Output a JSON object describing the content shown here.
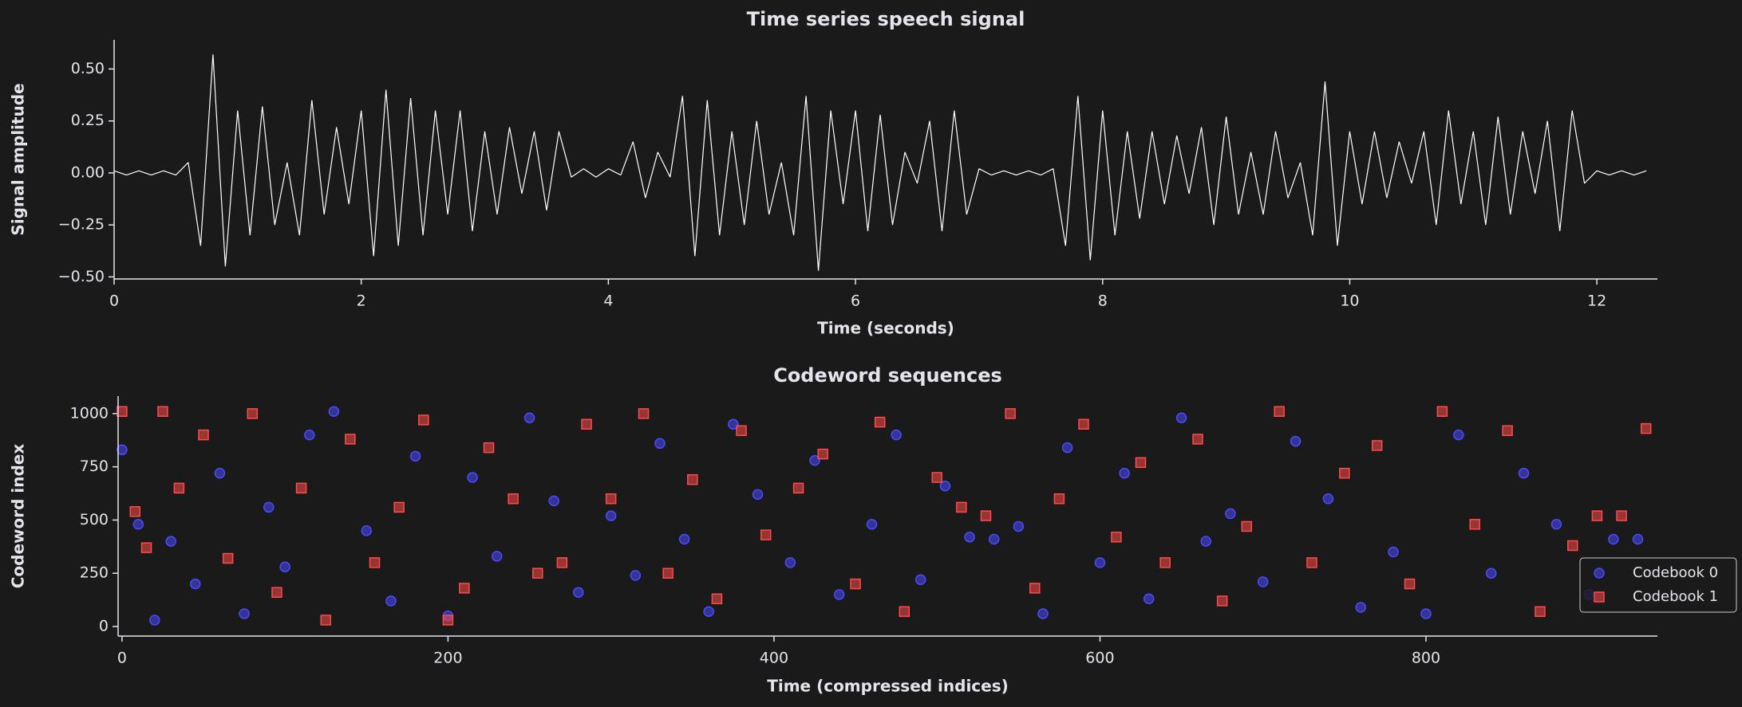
{
  "chart_data": [
    {
      "type": "line",
      "title": "Time series speech signal",
      "xlabel": "Time (seconds)",
      "ylabel": "Signal amplitude",
      "xlim": [
        0,
        12.49
      ],
      "ylim": [
        -0.51,
        0.64
      ],
      "xticks": [
        0,
        2,
        4,
        6,
        8,
        10,
        12
      ],
      "yticks": [
        {
          "value": -0.5,
          "label": "−0.50"
        },
        {
          "value": -0.25,
          "label": "−0.25"
        },
        {
          "value": 0,
          "label": "0.00"
        },
        {
          "value": 0.25,
          "label": "0.25"
        },
        {
          "value": 0.5,
          "label": "0.50"
        }
      ],
      "series": [
        {
          "color": "#ffffff",
          "x": [
            0,
            0.1,
            0.2,
            0.3,
            0.4,
            0.5,
            0.6,
            0.7,
            0.8,
            0.9,
            1.0,
            1.1,
            1.2,
            1.3,
            1.4,
            1.5,
            1.6,
            1.7,
            1.8,
            1.9,
            2.0,
            2.1,
            2.2,
            2.3,
            2.4,
            2.5,
            2.6,
            2.7,
            2.8,
            2.9,
            3.0,
            3.1,
            3.2,
            3.3,
            3.4,
            3.5,
            3.6,
            3.7,
            3.8,
            3.9,
            4.0,
            4.1,
            4.2,
            4.3,
            4.4,
            4.5,
            4.6,
            4.7,
            4.8,
            4.9,
            5.0,
            5.1,
            5.2,
            5.3,
            5.4,
            5.5,
            5.6,
            5.7,
            5.8,
            5.9,
            6.0,
            6.1,
            6.2,
            6.3,
            6.4,
            6.5,
            6.6,
            6.7,
            6.8,
            6.9,
            7.0,
            7.1,
            7.2,
            7.3,
            7.4,
            7.5,
            7.6,
            7.7,
            7.8,
            7.9,
            8.0,
            8.1,
            8.2,
            8.3,
            8.4,
            8.5,
            8.6,
            8.7,
            8.8,
            8.9,
            9.0,
            9.1,
            9.2,
            9.3,
            9.4,
            9.5,
            9.6,
            9.7,
            9.8,
            9.9,
            10.0,
            10.1,
            10.2,
            10.3,
            10.4,
            10.5,
            10.6,
            10.7,
            10.8,
            10.9,
            11.0,
            11.1,
            11.2,
            11.3,
            11.4,
            11.5,
            11.6,
            11.7,
            11.8,
            11.9,
            12.0,
            12.1,
            12.2,
            12.3,
            12.4
          ],
          "values": [
            0.01,
            -0.01,
            0.01,
            -0.01,
            0.01,
            -0.01,
            0.05,
            -0.35,
            0.57,
            -0.45,
            0.3,
            -0.3,
            0.32,
            -0.25,
            0.05,
            -0.3,
            0.35,
            -0.2,
            0.22,
            -0.15,
            0.3,
            -0.4,
            0.4,
            -0.35,
            0.36,
            -0.3,
            0.3,
            -0.2,
            0.3,
            -0.28,
            0.2,
            -0.2,
            0.22,
            -0.1,
            0.2,
            -0.18,
            0.2,
            -0.02,
            0.02,
            -0.02,
            0.02,
            -0.01,
            0.15,
            -0.12,
            0.1,
            -0.02,
            0.37,
            -0.4,
            0.35,
            -0.3,
            0.2,
            -0.25,
            0.25,
            -0.2,
            0.05,
            -0.3,
            0.37,
            -0.47,
            0.3,
            -0.15,
            0.3,
            -0.28,
            0.28,
            -0.25,
            0.1,
            -0.05,
            0.25,
            -0.28,
            0.3,
            -0.2,
            0.02,
            -0.01,
            0.01,
            -0.01,
            0.01,
            -0.01,
            0.02,
            -0.35,
            0.37,
            -0.42,
            0.3,
            -0.3,
            0.2,
            -0.22,
            0.2,
            -0.15,
            0.18,
            -0.1,
            0.22,
            -0.25,
            0.27,
            -0.2,
            0.1,
            -0.2,
            0.2,
            -0.12,
            0.05,
            -0.3,
            0.44,
            -0.35,
            0.2,
            -0.15,
            0.2,
            -0.12,
            0.15,
            -0.05,
            0.2,
            -0.25,
            0.3,
            -0.15,
            0.2,
            -0.25,
            0.27,
            -0.2,
            0.2,
            -0.1,
            0.25,
            -0.28,
            0.3,
            -0.05,
            0.01,
            -0.01,
            0.01,
            -0.01,
            0.01
          ]
        }
      ]
    },
    {
      "type": "scatter",
      "title": "Codeword sequences",
      "xlabel": "Time (compressed indices)",
      "ylabel": "Codeword index",
      "xlim": [
        -2.4,
        942
      ],
      "ylim": [
        -45,
        1082
      ],
      "xticks": [
        0,
        200,
        400,
        600,
        800
      ],
      "yticks": [
        0,
        250,
        500,
        750,
        1000
      ],
      "legend": "lower right",
      "series": [
        {
          "name": "Codebook 0",
          "color": "#4a4aff",
          "marker": "circle",
          "x": [
            0,
            10,
            20,
            30,
            45,
            60,
            75,
            90,
            100,
            115,
            130,
            150,
            165,
            180,
            200,
            215,
            230,
            250,
            265,
            280,
            300,
            315,
            330,
            345,
            360,
            375,
            390,
            410,
            425,
            440,
            460,
            475,
            490,
            505,
            520,
            535,
            550,
            565,
            580,
            600,
            615,
            630,
            650,
            665,
            680,
            700,
            720,
            740,
            760,
            780,
            800,
            820,
            840,
            860,
            880,
            900,
            915,
            930
          ],
          "values": [
            830,
            480,
            30,
            400,
            200,
            720,
            60,
            560,
            280,
            900,
            1010,
            450,
            120,
            800,
            50,
            700,
            330,
            980,
            590,
            160,
            520,
            240,
            860,
            410,
            70,
            950,
            620,
            300,
            780,
            150,
            480,
            900,
            220,
            660,
            420,
            410,
            470,
            60,
            840,
            300,
            720,
            130,
            980,
            400,
            530,
            210,
            870,
            600,
            90,
            350,
            60,
            900,
            250,
            720,
            480,
            150,
            410,
            410
          ]
        },
        {
          "name": "Codebook 1",
          "color": "#ff4a4a",
          "marker": "square",
          "x": [
            0,
            8,
            15,
            25,
            35,
            50,
            65,
            80,
            95,
            110,
            125,
            140,
            155,
            170,
            185,
            200,
            210,
            225,
            240,
            255,
            270,
            285,
            300,
            320,
            335,
            350,
            365,
            380,
            395,
            415,
            430,
            450,
            465,
            480,
            500,
            515,
            530,
            545,
            560,
            575,
            590,
            610,
            625,
            640,
            660,
            675,
            690,
            710,
            730,
            750,
            770,
            790,
            810,
            830,
            850,
            870,
            890,
            905,
            920,
            935
          ],
          "values": [
            1010,
            540,
            370,
            1010,
            650,
            900,
            320,
            1000,
            160,
            650,
            30,
            880,
            300,
            560,
            970,
            30,
            180,
            840,
            600,
            250,
            300,
            950,
            600,
            1000,
            250,
            690,
            130,
            920,
            430,
            650,
            810,
            200,
            960,
            70,
            700,
            560,
            520,
            1000,
            180,
            600,
            950,
            420,
            770,
            300,
            880,
            120,
            470,
            1010,
            300,
            720,
            850,
            200,
            1010,
            480,
            920,
            70,
            380,
            520,
            520,
            930
          ]
        }
      ]
    }
  ]
}
